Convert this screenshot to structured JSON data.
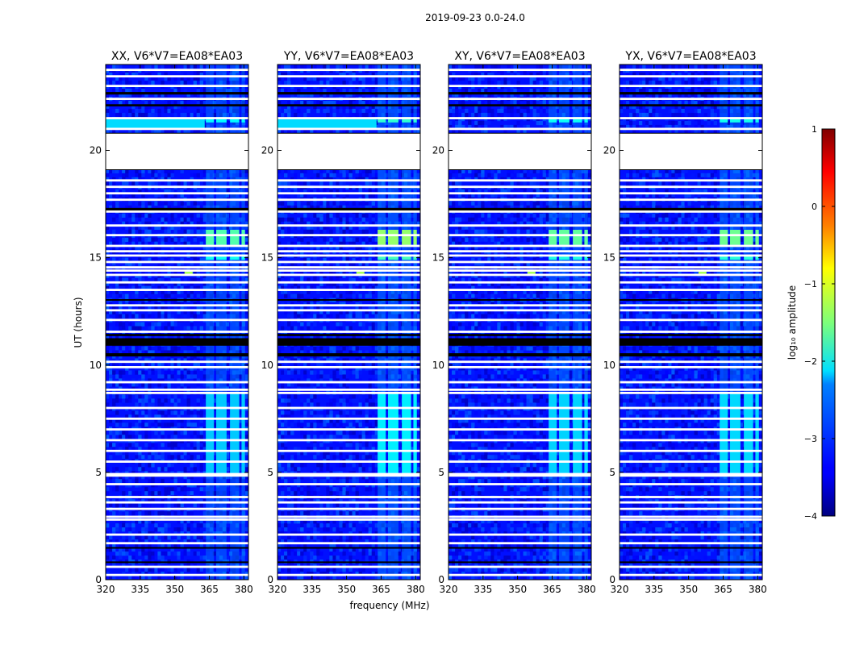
{
  "figure": {
    "suptitle": "2019-09-23 0.0-24.0"
  },
  "chart_data": {
    "type": "heatmap",
    "xlabel": "frequency (MHz)",
    "ylabel": "UT (hours)",
    "xlim": [
      320,
      382
    ],
    "ylim": [
      0,
      24
    ],
    "xticks": [
      320,
      335,
      350,
      365,
      380
    ],
    "yticks": [
      0,
      5,
      10,
      15,
      20
    ],
    "panels": [
      {
        "title": "XX, V6*V7=EA08*EA03",
        "polarization": "XX",
        "rfi_strength": 0.62
      },
      {
        "title": "YY, V6*V7=EA08*EA03",
        "polarization": "YY",
        "rfi_strength": 1.0
      },
      {
        "title": "XY, V6*V7=EA08*EA03",
        "polarization": "XY",
        "rfi_strength": 0.72
      },
      {
        "title": "YX, V6*V7=EA08*EA03",
        "polarization": "YX",
        "rfi_strength": 0.78
      }
    ],
    "colorbar": {
      "label": "log₁₀ amplitude",
      "range": [
        -4,
        1
      ],
      "ticks": [
        -4,
        -3,
        -2,
        -1,
        0,
        1
      ],
      "colormap": "jet"
    },
    "background_log_amplitude": -3.3,
    "data_gaps_hours": [
      [
        19.1,
        20.8
      ]
    ],
    "flagged_blank_hours": [
      0.22,
      0.6,
      1.7,
      2.1,
      2.8,
      2.93,
      3.3,
      3.6,
      3.85,
      4.45,
      4.85,
      4.92,
      5.5,
      6.0,
      6.5,
      7.0,
      7.5,
      8.0,
      8.7,
      8.85,
      9.2,
      9.9,
      10.15,
      11.55,
      12.1,
      12.55,
      12.78,
      13.5,
      13.85,
      14.2,
      14.4,
      14.55,
      14.8,
      15.1,
      15.3,
      15.55,
      16.05,
      16.5,
      17.15,
      17.7,
      18.0,
      18.3,
      18.6,
      21.0,
      21.5,
      22.4,
      23.0,
      23.45,
      23.75
    ],
    "dead_black_hours": [
      [
        0.78,
        0.85
      ],
      [
        1.45,
        1.52
      ],
      [
        10.4,
        10.55
      ],
      [
        10.9,
        11.25
      ],
      [
        11.35,
        11.45
      ],
      [
        13.0,
        13.07
      ],
      [
        17.2,
        17.32
      ],
      [
        22.05,
        22.15
      ],
      [
        22.6,
        22.72
      ]
    ],
    "rfi_channel_mhz": [
      [
        363.5,
        367.0
      ],
      [
        368.0,
        372.5
      ],
      [
        374.0,
        378.0
      ],
      [
        379.0,
        380.5
      ]
    ],
    "rfi_hour_ranges": [
      {
        "hours": [
          4.9,
          8.7
        ],
        "log_amplitude": -2.2
      },
      {
        "hours": [
          15.6,
          16.3
        ],
        "log_amplitude": -1.4
      },
      {
        "hours": [
          14.9,
          15.1
        ],
        "log_amplitude": -1.8
      },
      {
        "hours": [
          21.3,
          21.55
        ],
        "log_amplitude": -1.9
      }
    ],
    "wideband_band_hours": [
      21.05,
      21.5
    ],
    "wideband_log_amplitude": -2.3,
    "spike_feature": {
      "frequency_mhz": 356,
      "hours": 14.3
    }
  }
}
